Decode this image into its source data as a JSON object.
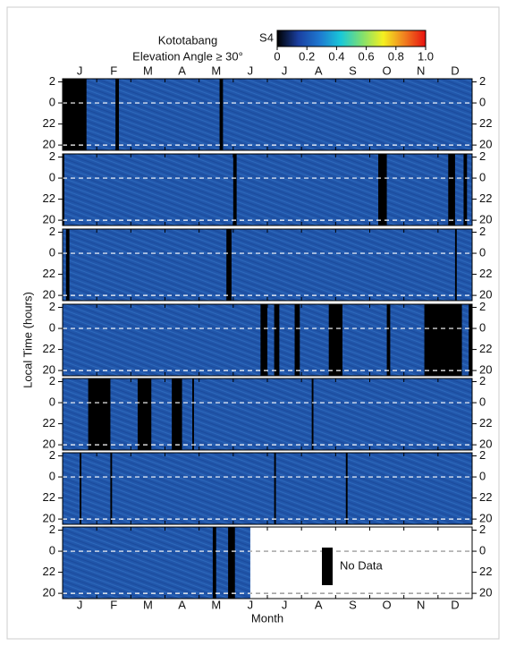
{
  "chart_data": {
    "type": "heatmap",
    "title": "Kototabang",
    "subtitle": "Elevation Angle ≥ 30°",
    "xlabel": "Month",
    "ylabel": "Local Time (hours)",
    "categories": [
      "J",
      "F",
      "M",
      "A",
      "M",
      "J",
      "J",
      "A",
      "S",
      "O",
      "N",
      "D"
    ],
    "ylim": [
      19.5,
      26.3
    ],
    "yticks": [
      20,
      22,
      {
        "value": 24,
        "label": "0"
      },
      {
        "value": 26,
        "label": "2"
      }
    ],
    "reference_lines": [
      20,
      24
    ],
    "colorbar": {
      "label": "S4",
      "lim": [
        0,
        1
      ],
      "ticks": [
        0,
        0.2,
        0.4,
        0.6,
        0.8,
        {
          "value": 1,
          "label": "1.0"
        }
      ],
      "colors": [
        "#000000",
        "#1a3fa0",
        "#1e78d0",
        "#19c8d8",
        "#7fe070",
        "#f4f020",
        "#f08020",
        "#e81010"
      ]
    },
    "background_color": "#2156aa",
    "no_data_color": "#000000",
    "legend_label": "No Data",
    "panels": [
      {
        "no_data": [
          [
            0,
            0.7
          ],
          [
            1.55,
            1.65
          ],
          [
            4.6,
            4.7
          ]
        ]
      },
      {
        "no_data": [
          [
            0,
            0.05
          ],
          [
            5,
            5.1
          ],
          [
            9.25,
            9.5
          ],
          [
            11.3,
            11.5
          ],
          [
            11.75,
            11.85
          ]
        ]
      },
      {
        "no_data": [
          [
            0.1,
            0.2
          ],
          [
            4.8,
            4.95
          ],
          [
            11.5,
            11.55
          ]
        ]
      },
      {
        "no_data": [
          [
            5.8,
            6
          ],
          [
            6.2,
            6.35
          ],
          [
            6.8,
            6.95
          ],
          [
            7.8,
            8.2
          ],
          [
            9.5,
            9.6
          ],
          [
            10.6,
            11.7
          ],
          [
            11.9,
            12
          ]
        ]
      },
      {
        "no_data": [
          [
            0.75,
            1.4
          ],
          [
            2.2,
            2.6
          ],
          [
            3.2,
            3.5
          ],
          [
            3.8,
            3.85
          ],
          [
            7.3,
            7.35
          ]
        ]
      },
      {
        "no_data": [
          [
            0.5,
            0.55
          ],
          [
            1.4,
            1.45
          ],
          [
            6.2,
            6.25
          ],
          [
            8.3,
            8.35
          ]
        ]
      },
      {
        "no_data": [
          [
            4.4,
            4.5
          ],
          [
            4.85,
            5.05
          ]
        ],
        "data_end": 5.5
      }
    ]
  }
}
